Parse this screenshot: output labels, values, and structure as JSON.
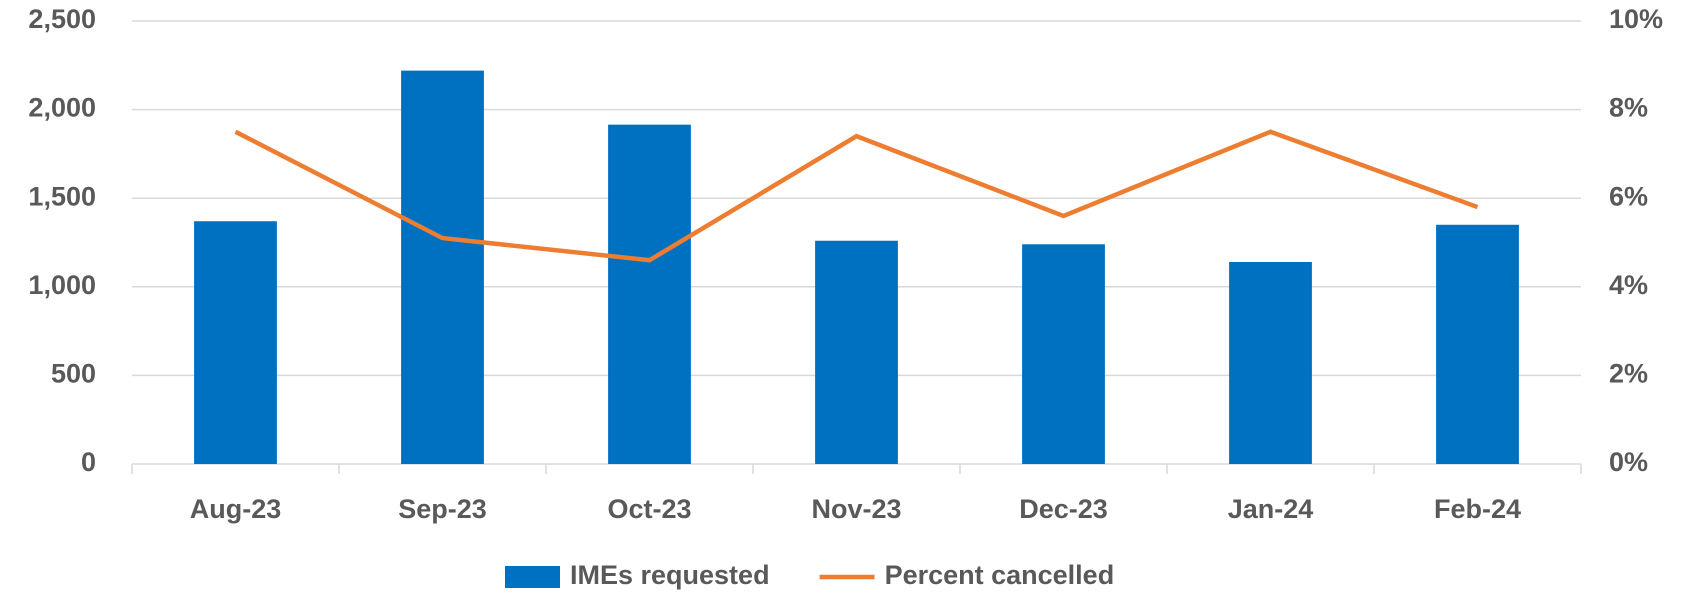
{
  "chart_data": {
    "type": "bar",
    "categories": [
      "Aug-23",
      "Sep-23",
      "Oct-23",
      "Nov-23",
      "Dec-23",
      "Jan-24",
      "Feb-24"
    ],
    "series": [
      {
        "name": "IMEs requested",
        "type": "bar",
        "color": "#0070c0",
        "values": [
          1370,
          2220,
          1915,
          1260,
          1240,
          1140,
          1350
        ]
      },
      {
        "name": "Percent cancelled",
        "type": "line",
        "axis": "y2",
        "color": "#ed7d31",
        "values": [
          7.5,
          5.1,
          4.6,
          7.4,
          5.6,
          7.5,
          5.8
        ]
      }
    ],
    "ylim": [
      0,
      2500
    ],
    "yticks": [
      0,
      500,
      {
        "value": 1000,
        "label": "1,000"
      },
      {
        "value": 1500,
        "label": "1,500"
      },
      {
        "value": 2000,
        "label": "2,000"
      },
      {
        "value": 2500,
        "label": "2,500"
      }
    ],
    "y2lim": [
      0,
      10
    ],
    "y2ticks": [
      {
        "value": 0,
        "label": "0%"
      },
      {
        "value": 2,
        "label": "2%"
      },
      {
        "value": 4,
        "label": "4%"
      },
      {
        "value": 6,
        "label": "6%"
      },
      {
        "value": 8,
        "label": "8%"
      },
      {
        "value": 10,
        "label": "10%"
      }
    ],
    "grid": true,
    "legend": "bottom"
  }
}
